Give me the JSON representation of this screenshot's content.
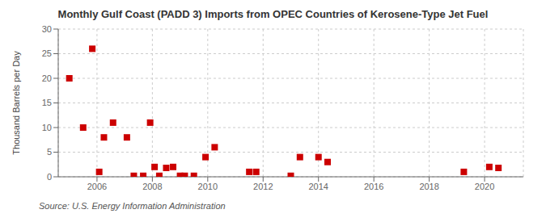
{
  "chart_data": {
    "type": "scatter",
    "title": "Monthly Gulf Coast (PADD 3) Imports from OPEC Countries of Kerosene-Type Jet Fuel",
    "ylabel": "Thousand Barrels per Day",
    "annotations": [
      "Source: U.S. Energy Information Administration"
    ],
    "x": [
      2005.0,
      2005.5,
      2005.83,
      2006.08,
      2006.25,
      2006.58,
      2007.08,
      2007.33,
      2007.67,
      2007.92,
      2008.08,
      2008.25,
      2008.5,
      2008.75,
      2009.0,
      2009.17,
      2009.5,
      2009.92,
      2010.25,
      2011.5,
      2011.75,
      2013.0,
      2013.33,
      2014.0,
      2014.33,
      2019.25,
      2020.17,
      2020.5
    ],
    "values": [
      20.0,
      10.0,
      26.0,
      1.0,
      8.0,
      11.0,
      8.0,
      0.2,
      0.2,
      11.0,
      2.0,
      0.2,
      1.8,
      2.0,
      0.2,
      0.2,
      0.2,
      4.0,
      6.0,
      1.0,
      1.0,
      0.2,
      4.0,
      4.0,
      3.0,
      1.0,
      2.0,
      1.8
    ],
    "color": "#cc0000",
    "marker": "square",
    "xlim": [
      2004.6,
      2021.4
    ],
    "xticks": [
      2006,
      2008,
      2010,
      2012,
      2014,
      2016,
      2018,
      2020
    ],
    "ylim": [
      0,
      30
    ],
    "yticks": [
      0,
      5,
      10,
      15,
      20,
      25,
      30
    ],
    "grid": true
  }
}
